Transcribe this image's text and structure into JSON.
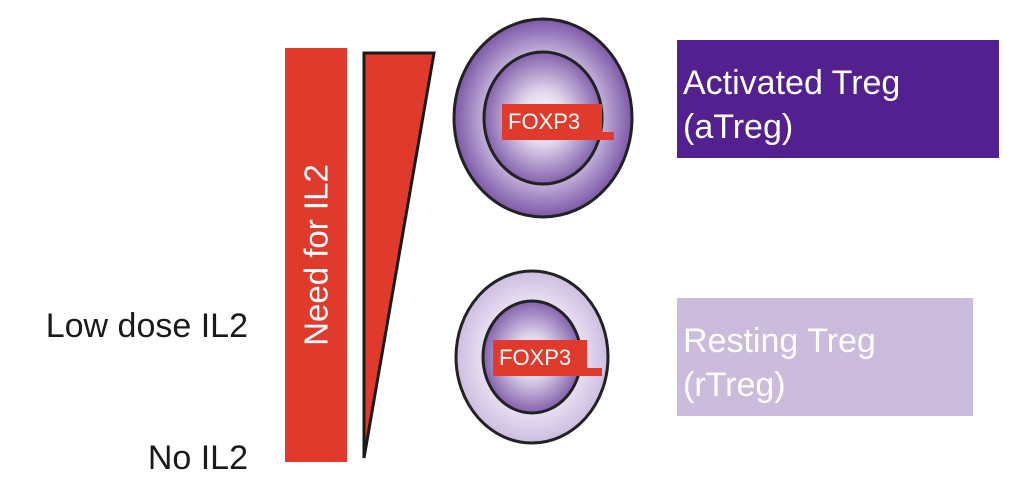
{
  "left_labels": {
    "low": "Low dose IL2",
    "none": "No IL2"
  },
  "need_bar": {
    "label": "Need for IL2",
    "color": "#e03a2c"
  },
  "cells": {
    "activated": {
      "marker": "FOXP3"
    },
    "resting": {
      "marker": "FOXP3"
    }
  },
  "treg_boxes": {
    "activated": {
      "line1": "Activated Treg",
      "line2": "(aTreg)",
      "color": "#52218f"
    },
    "resting": {
      "line1": "Resting Treg",
      "line2": "(rTreg)",
      "color": "#cbbbdc"
    }
  }
}
